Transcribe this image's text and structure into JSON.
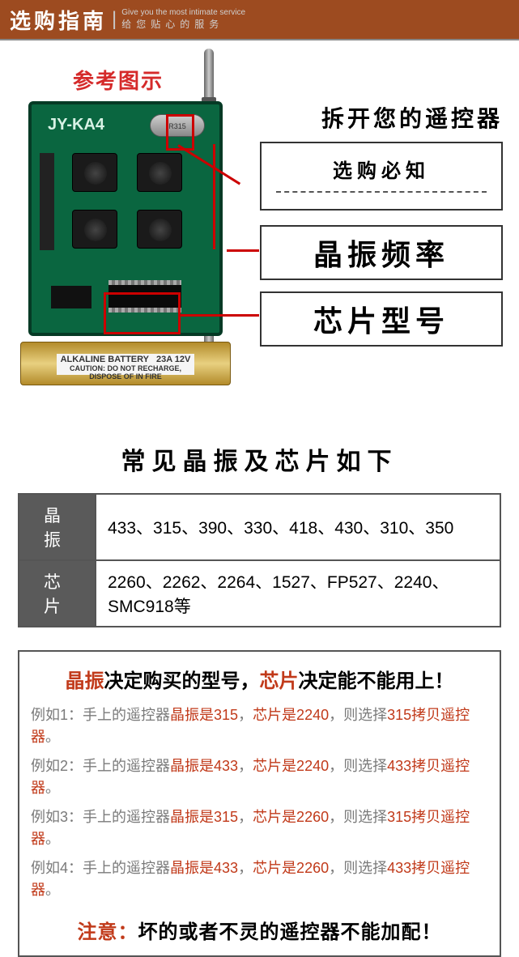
{
  "header": {
    "title": "选购指南",
    "en": "Give you the most intimate service",
    "sub": "给您贴心的服务"
  },
  "diagram": {
    "ref_label": "参考图示",
    "pcb_silk": "JY-KA4",
    "crystal_text": "R315",
    "battery_top": "ALKALINE BATTERY",
    "battery_big": "23A 12V",
    "main_heading": "拆开您的遥控器",
    "info_t1": "选购必知",
    "callout_crystal": "晶振频率",
    "callout_chip": "芯片型号"
  },
  "spec": {
    "section_title": "常见晶振及芯片如下",
    "row1_hdr": "晶振",
    "row1_val": "433、315、390、330、418、430、310、350",
    "row2_hdr": "芯片",
    "row2_val": "2260、2262、2264、1527、FP527、2240、SMC918等"
  },
  "guide": {
    "headline_a": "晶振",
    "headline_b": "决定购买的型号，",
    "headline_c": "芯片",
    "headline_d": "决定能不能用上！",
    "examples": [
      {
        "pre": "例如1：手上的遥控器",
        "k1": "晶振是315",
        "mid": "，",
        "k2": "芯片是2240",
        "tail1": "，则选择",
        "sel": "315拷贝遥控器",
        "end": "。"
      },
      {
        "pre": "例如2：手上的遥控器",
        "k1": "晶振是433",
        "mid": "，",
        "k2": "芯片是2240",
        "tail1": "，则选择",
        "sel": "433拷贝遥控器",
        "end": "。"
      },
      {
        "pre": "例如3：手上的遥控器",
        "k1": "晶振是315",
        "mid": "，",
        "k2": "芯片是2260",
        "tail1": "，则选择",
        "sel": "315拷贝遥控器",
        "end": "。"
      },
      {
        "pre": "例如4：手上的遥控器",
        "k1": "晶振是433",
        "mid": "，",
        "k2": "芯片是2260",
        "tail1": "，则选择",
        "sel": "433拷贝遥控器",
        "end": "。"
      }
    ],
    "warn_a": "注意：",
    "warn_b": "坏的或者不灵的遥控器不能加配！"
  },
  "colors": {
    "brand": "#9d4b20",
    "accent_red": "#c13a1a",
    "grey_text": "#7a7a7a",
    "border": "#555555",
    "pcb_green": "#0a6640"
  }
}
